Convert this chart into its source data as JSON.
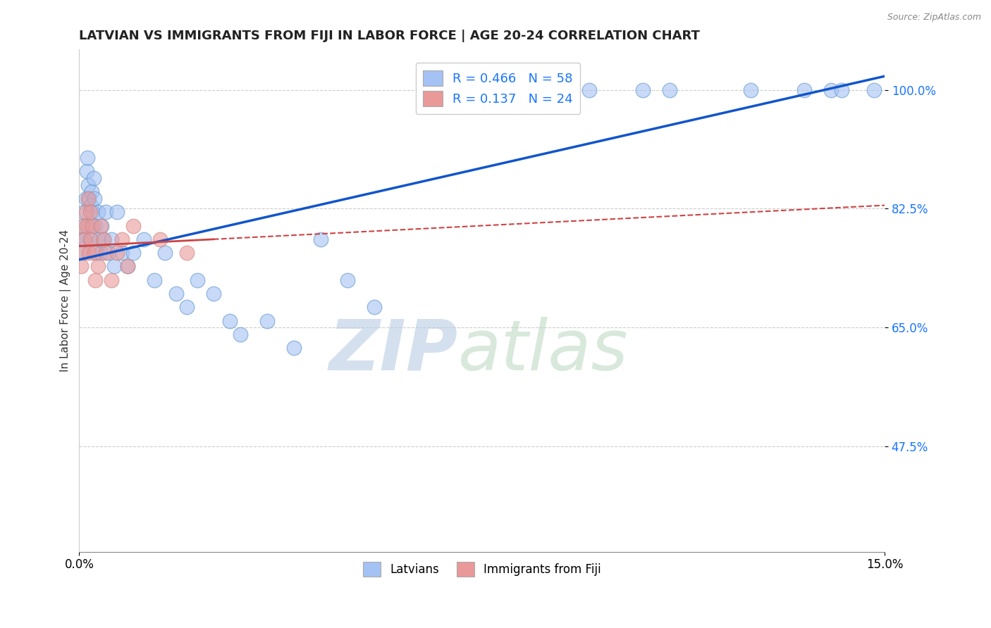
{
  "title": "LATVIAN VS IMMIGRANTS FROM FIJI IN LABOR FORCE | AGE 20-24 CORRELATION CHART",
  "source_text": "Source: ZipAtlas.com",
  "ylabel": "In Labor Force | Age 20-24",
  "xlim": [
    0.0,
    15.0
  ],
  "ylim": [
    32.0,
    106.0
  ],
  "yticks": [
    47.5,
    65.0,
    82.5,
    100.0
  ],
  "xticks": [
    0.0,
    15.0
  ],
  "xtick_labels": [
    "0.0%",
    "15.0%"
  ],
  "ytick_labels": [
    "47.5%",
    "65.0%",
    "82.5%",
    "100.0%"
  ],
  "legend_r1": "R = 0.466",
  "legend_n1": "N = 58",
  "legend_r2": "R = 0.137",
  "legend_n2": "N = 24",
  "latvian_color": "#a4c2f4",
  "fiji_color": "#ea9999",
  "line_color_latvian": "#1155cc",
  "line_color_fiji": "#cc4444",
  "watermark_zip": "ZIP",
  "watermark_atlas": "atlas",
  "latvian_x": [
    0.05,
    0.07,
    0.08,
    0.09,
    0.1,
    0.12,
    0.14,
    0.15,
    0.17,
    0.18,
    0.19,
    0.2,
    0.22,
    0.23,
    0.25,
    0.27,
    0.28,
    0.3,
    0.32,
    0.35,
    0.38,
    0.4,
    0.42,
    0.45,
    0.5,
    0.55,
    0.6,
    0.65,
    0.7,
    0.8,
    0.9,
    1.0,
    1.2,
    1.4,
    1.6,
    1.8,
    2.0,
    2.2,
    2.5,
    2.8,
    3.0,
    3.5,
    4.0,
    4.5,
    5.0,
    5.5,
    6.5,
    7.5,
    8.5,
    9.0,
    9.5,
    10.5,
    11.0,
    12.5,
    13.5,
    14.0,
    14.2,
    14.8
  ],
  "latvian_y": [
    76.0,
    78.0,
    80.0,
    82.0,
    78.0,
    84.0,
    88.0,
    90.0,
    86.0,
    84.0,
    80.0,
    78.0,
    83.0,
    85.0,
    82.0,
    87.0,
    84.0,
    80.0,
    76.0,
    82.0,
    78.0,
    76.0,
    80.0,
    78.0,
    82.0,
    76.0,
    78.0,
    74.0,
    82.0,
    76.0,
    74.0,
    76.0,
    78.0,
    72.0,
    76.0,
    70.0,
    68.0,
    72.0,
    70.0,
    66.0,
    64.0,
    66.0,
    62.0,
    78.0,
    72.0,
    68.0,
    100.0,
    100.0,
    100.0,
    100.0,
    100.0,
    100.0,
    100.0,
    100.0,
    100.0,
    100.0,
    100.0,
    100.0
  ],
  "fiji_x": [
    0.04,
    0.06,
    0.08,
    0.1,
    0.12,
    0.14,
    0.16,
    0.18,
    0.2,
    0.22,
    0.25,
    0.28,
    0.3,
    0.35,
    0.4,
    0.45,
    0.5,
    0.6,
    0.7,
    0.8,
    0.9,
    1.0,
    1.5,
    2.0
  ],
  "fiji_y": [
    74.0,
    80.0,
    76.0,
    78.0,
    82.0,
    80.0,
    84.0,
    76.0,
    82.0,
    78.0,
    80.0,
    76.0,
    72.0,
    74.0,
    80.0,
    78.0,
    76.0,
    72.0,
    76.0,
    78.0,
    74.0,
    80.0,
    78.0,
    76.0
  ],
  "fiji_line_x0": 0.0,
  "fiji_line_x1": 2.5,
  "fiji_line_x2": 15.0
}
